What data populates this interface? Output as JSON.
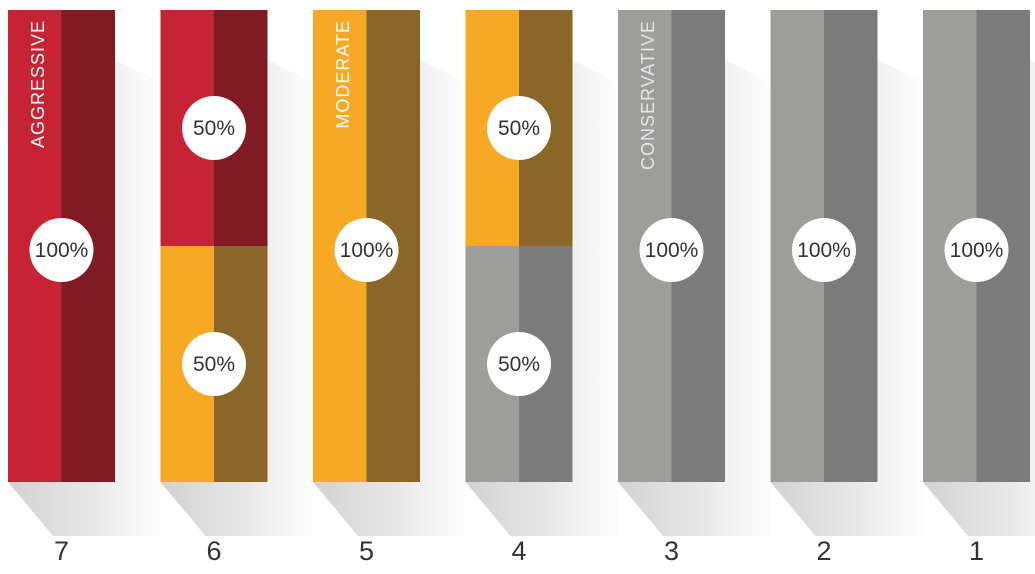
{
  "chart_data": {
    "type": "bar",
    "stacked": true,
    "categories": [
      "7",
      "6",
      "5",
      "4",
      "3",
      "2",
      "1"
    ],
    "column_titles": [
      "AGGRESSIVE",
      "",
      "MODERATE",
      "",
      "CONSERVATIVE",
      "",
      ""
    ],
    "columns": [
      {
        "category": "7",
        "title": "AGGRESSIVE",
        "segments": [
          {
            "color_key": "red",
            "value": 100,
            "label": "100%"
          }
        ]
      },
      {
        "category": "6",
        "title": "",
        "segments": [
          {
            "color_key": "red",
            "value": 50,
            "label": "50%"
          },
          {
            "color_key": "orange",
            "value": 50,
            "label": "50%"
          }
        ]
      },
      {
        "category": "5",
        "title": "MODERATE",
        "segments": [
          {
            "color_key": "orange",
            "value": 100,
            "label": "100%"
          }
        ]
      },
      {
        "category": "4",
        "title": "",
        "segments": [
          {
            "color_key": "orange",
            "value": 50,
            "label": "50%"
          },
          {
            "color_key": "gray",
            "value": 50,
            "label": "50%"
          }
        ]
      },
      {
        "category": "3",
        "title": "CONSERVATIVE",
        "segments": [
          {
            "color_key": "gray",
            "value": 100,
            "label": "100%"
          }
        ]
      },
      {
        "category": "2",
        "title": "",
        "segments": [
          {
            "color_key": "gray",
            "value": 100,
            "label": "100%"
          }
        ]
      },
      {
        "category": "1",
        "title": "",
        "segments": [
          {
            "color_key": "gray",
            "value": 100,
            "label": "100%"
          }
        ]
      }
    ],
    "ylim": [
      0,
      100
    ],
    "grid": false,
    "legend": "none"
  },
  "colors": {
    "red": {
      "light": "#c62334",
      "dark": "#801b24"
    },
    "orange": {
      "light": "#f7a825",
      "dark": "#8a6628"
    },
    "gray": {
      "light": "#9d9e9a",
      "dark": "#7b7b7b"
    },
    "title_on_gray": "#e6e6e6",
    "title_on_color": "#ffffff"
  }
}
